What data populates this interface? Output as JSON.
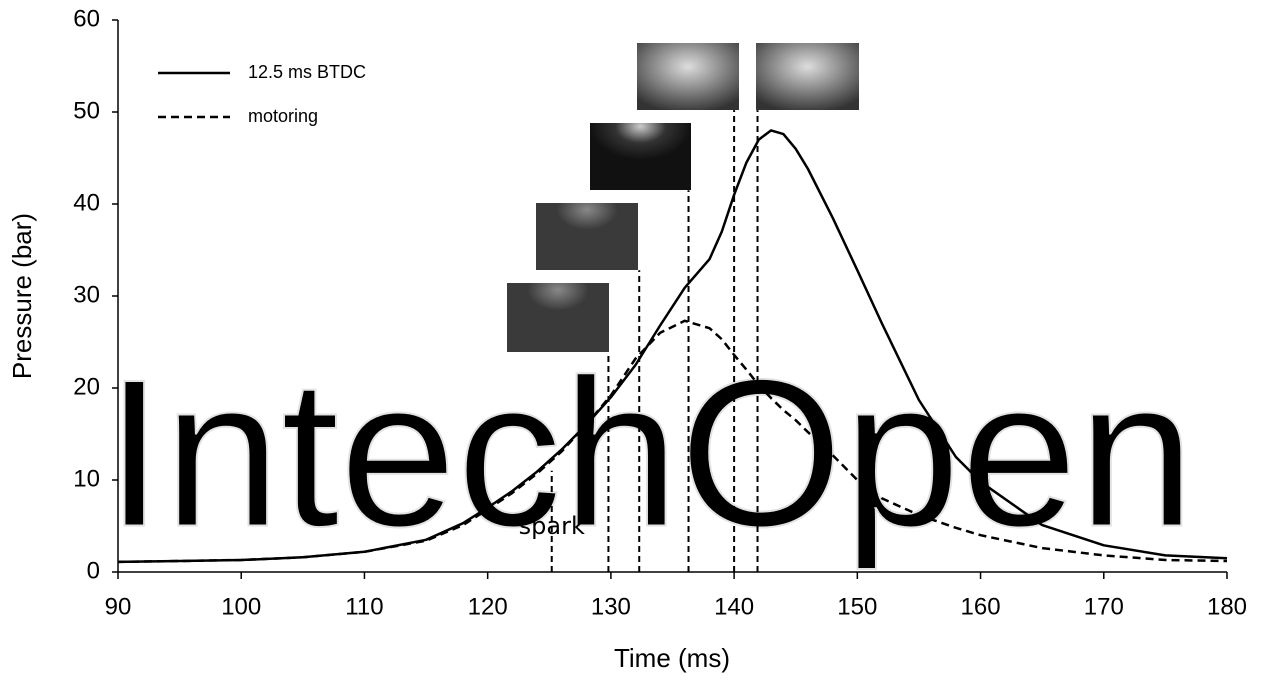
{
  "chart_data": {
    "type": "line",
    "xlabel": "Time (ms)",
    "ylabel": "Pressure (bar)",
    "watermark": "IntechOpen",
    "x": [
      90,
      95,
      100,
      105,
      110,
      115,
      118,
      120,
      122,
      124,
      126,
      128,
      130,
      132,
      134,
      136,
      138,
      139,
      140,
      141,
      142,
      143,
      144,
      145,
      146,
      148,
      150,
      152,
      155,
      158,
      160,
      165,
      170,
      175,
      180
    ],
    "series": [
      {
        "name": "12.5 ms BTDC",
        "color": "#000000",
        "dash": false,
        "values": [
          1.1,
          1.2,
          1.3,
          1.6,
          2.2,
          3.5,
          5.3,
          7,
          8.8,
          10.9,
          13.3,
          16,
          19,
          22.5,
          26.8,
          30.9,
          34,
          37,
          41,
          44.5,
          47,
          48,
          47.6,
          46,
          43.8,
          38.5,
          32.8,
          27,
          18.7,
          12.5,
          9.8,
          5.1,
          2.9,
          1.8,
          1.5
        ]
      },
      {
        "name": "motoring",
        "color": "#000000",
        "dash": true,
        "values": [
          1.1,
          1.2,
          1.3,
          1.6,
          2.2,
          3.4,
          5.1,
          6.8,
          8.6,
          10.7,
          13.1,
          16,
          19.2,
          23.2,
          26,
          27.3,
          26.5,
          25.3,
          23.6,
          22,
          20.3,
          18.9,
          17.6,
          16.5,
          15.2,
          12.7,
          10,
          8,
          6.2,
          4.8,
          4,
          2.6,
          1.8,
          1.3,
          1.2
        ]
      }
    ],
    "annotation": {
      "text": "spark",
      "x": 125.2
    },
    "event_lines": [
      {
        "x": 125.2,
        "y_top": 11
      },
      {
        "x": 129.8,
        "y_top": 23.9
      },
      {
        "x": 132.3,
        "y_top": 32.8
      },
      {
        "x": 136.3,
        "y_top": 41.5
      },
      {
        "x": 140,
        "y_top": 50.2
      },
      {
        "x": 141.9,
        "y_top": 50.2
      }
    ],
    "xlim": [
      90,
      180
    ],
    "xticks": [
      90,
      100,
      110,
      120,
      130,
      140,
      150,
      160,
      170,
      180
    ],
    "ylim": [
      0,
      60
    ],
    "yticks": [
      0,
      10,
      20,
      30,
      40,
      50,
      60
    ],
    "grid": false,
    "legend": "upper left"
  }
}
